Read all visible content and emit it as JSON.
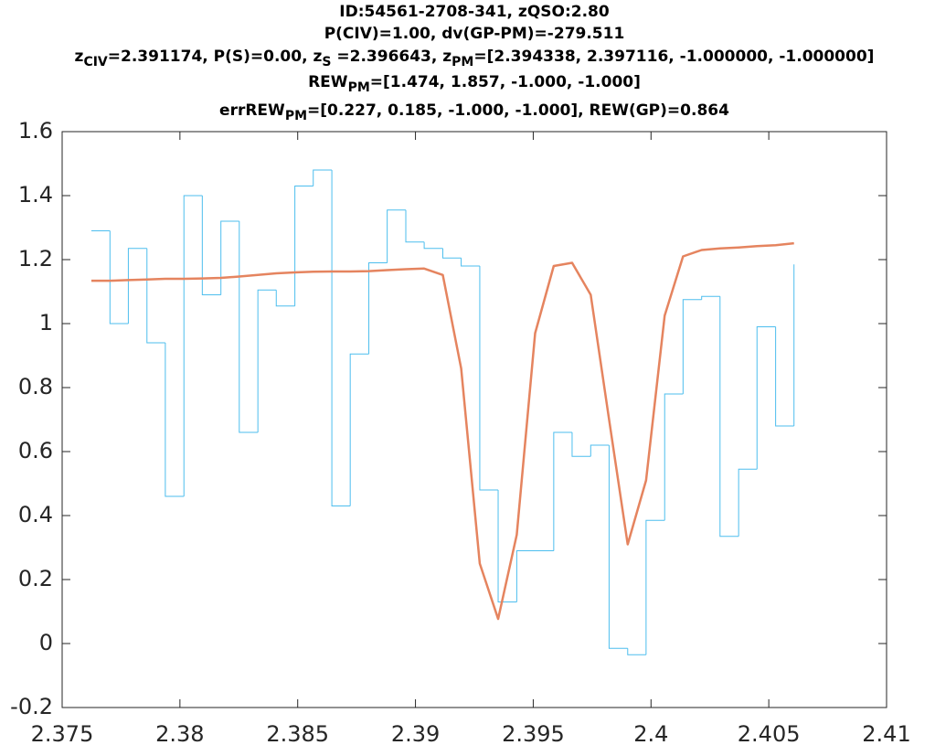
{
  "chart_data": {
    "type": "stairs-line",
    "title": [
      [
        "ID:54561-2708-341, zQSO:2.80"
      ],
      [
        "P(CIV)=1.00, dv(GP-PM)=-279.511"
      ],
      [
        "z",
        "CIV",
        "=2.391174, P(S)=0.00, z",
        "S",
        " =2.396643, z",
        "PM",
        "=[2.394338, 2.397116, -1.000000, -1.000000]"
      ],
      [
        "REW",
        "PM",
        "=[1.474, 1.857, -1.000, -1.000]"
      ],
      [
        "errREW",
        "PM",
        "=[0.227, 0.185, -1.000, -1.000], REW(GP)=0.864"
      ]
    ],
    "x": [
      2.37624,
      2.37703,
      2.37781,
      2.3786,
      2.37938,
      2.38017,
      2.38095,
      2.38174,
      2.38252,
      2.38331,
      2.38409,
      2.38488,
      2.38566,
      2.38645,
      2.38723,
      2.38802,
      2.3888,
      2.38959,
      2.39037,
      2.39116,
      2.39194,
      2.39273,
      2.39351,
      2.3943,
      2.39508,
      2.39587,
      2.39665,
      2.39744,
      2.39822,
      2.39901,
      2.39979,
      2.40058,
      2.40136,
      2.40215,
      2.40293,
      2.40372,
      2.4045,
      2.40529,
      2.40607
    ],
    "series": [
      {
        "style": "stairs",
        "color": "#4dbeee",
        "values": [
          1.29,
          1.0,
          1.235,
          0.94,
          0.46,
          1.4,
          1.09,
          1.32,
          0.66,
          1.105,
          1.055,
          1.43,
          1.48,
          0.43,
          0.905,
          1.19,
          1.355,
          1.255,
          1.235,
          1.205,
          1.18,
          0.48,
          0.13,
          0.29,
          0.29,
          0.66,
          0.585,
          0.62,
          -0.015,
          -0.035,
          0.385,
          0.78,
          1.075,
          1.085,
          0.335,
          0.545,
          0.99,
          0.68,
          1.185
        ]
      },
      {
        "style": "line",
        "color": "#e5845f",
        "values": [
          1.134,
          1.134,
          1.136,
          1.138,
          1.14,
          1.14,
          1.141,
          1.143,
          1.147,
          1.152,
          1.157,
          1.16,
          1.162,
          1.163,
          1.163,
          1.164,
          1.167,
          1.17,
          1.172,
          1.152,
          0.86,
          0.25,
          0.077,
          0.34,
          0.97,
          1.18,
          1.19,
          1.09,
          0.7,
          0.31,
          0.51,
          1.025,
          1.21,
          1.23,
          1.235,
          1.238,
          1.242,
          1.245,
          1.251
        ]
      }
    ],
    "xlim": [
      2.375,
      2.41
    ],
    "xticks": [
      2.375,
      2.38,
      2.385,
      2.39,
      2.395,
      2.4,
      2.405,
      2.41
    ],
    "ylim": [
      -0.2,
      1.6
    ],
    "yticks": [
      -0.2,
      0,
      0.2,
      0.4,
      0.6,
      0.8,
      1,
      1.2,
      1.4,
      1.6
    ]
  }
}
